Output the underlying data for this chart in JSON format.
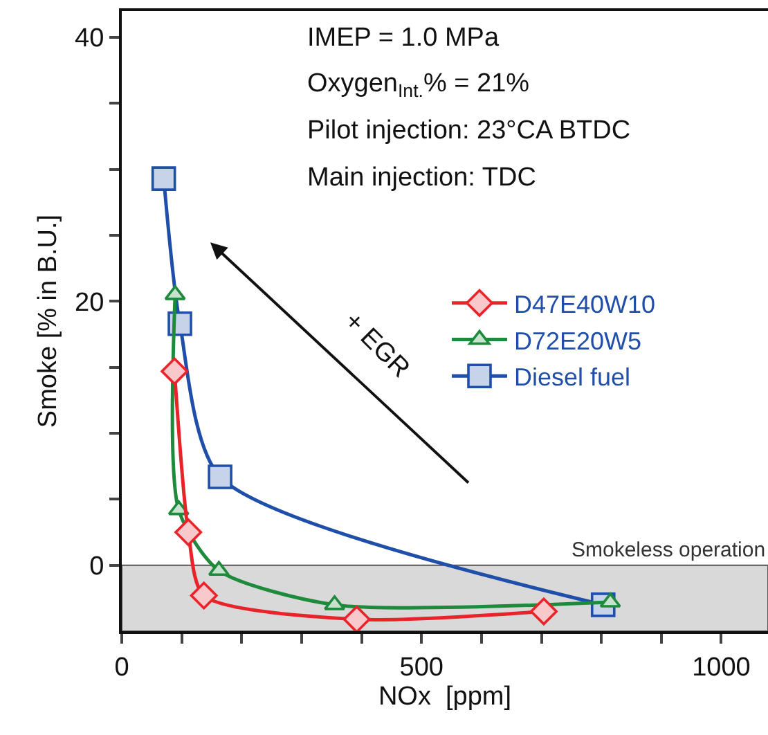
{
  "chart_data": {
    "type": "line",
    "xlabel": "NOx  [ppm]",
    "ylabel": "Smoke [% in B.U.]",
    "xlim": [
      0,
      1078
    ],
    "ylim": [
      -5,
      42
    ],
    "xticks": [
      0,
      {
        "value": 100,
        "label": null
      },
      {
        "value": 200,
        "label": null
      },
      {
        "value": 300,
        "label": null
      },
      {
        "value": 400,
        "label": null
      },
      500,
      {
        "value": 600,
        "label": null
      },
      {
        "value": 700,
        "label": null
      },
      {
        "value": 800,
        "label": null
      },
      {
        "value": 900,
        "label": null
      },
      1000
    ],
    "yticks": [
      0,
      {
        "value": 5,
        "label": null
      },
      {
        "value": 10,
        "label": null
      },
      {
        "value": 15,
        "label": null
      },
      20,
      {
        "value": 25,
        "label": null
      },
      {
        "value": 30,
        "label": null
      },
      {
        "value": 35,
        "label": null
      },
      40
    ],
    "grid": false,
    "legend": "right",
    "line_style": "solid",
    "series": [
      {
        "name": "D47E40W10",
        "color": "#e8242a",
        "marker": "diamond",
        "x": [
          88,
          111,
          137,
          392,
          704
        ],
        "values": [
          14.7,
          2.5,
          -2.3,
          -4.1,
          -3.5
        ]
      },
      {
        "name": "D72E20W5",
        "color": "#1e8a3c",
        "marker": "triangle",
        "x": [
          89,
          95,
          162,
          355,
          815
        ],
        "values": [
          20.5,
          4.2,
          -0.4,
          -3.0,
          -2.8
        ]
      },
      {
        "name": "Diesel fuel",
        "color": "#1f4fa8",
        "marker": "square",
        "x": [
          70,
          97,
          164,
          803
        ],
        "values": [
          29.3,
          18.3,
          6.7,
          -3.0
        ]
      }
    ],
    "bands": [
      {
        "axis": "y",
        "from": -5,
        "to": 0,
        "label": "Smokeless operation",
        "color": "#d9d9d9"
      }
    ],
    "annotations": [
      "IMEP = 1.0 MPa",
      "Oxygen$_{Int.}$% = 21%",
      "Pilot injection: 23°CA BTDC",
      "Main injection: TDC",
      "+ EGR"
    ]
  }
}
